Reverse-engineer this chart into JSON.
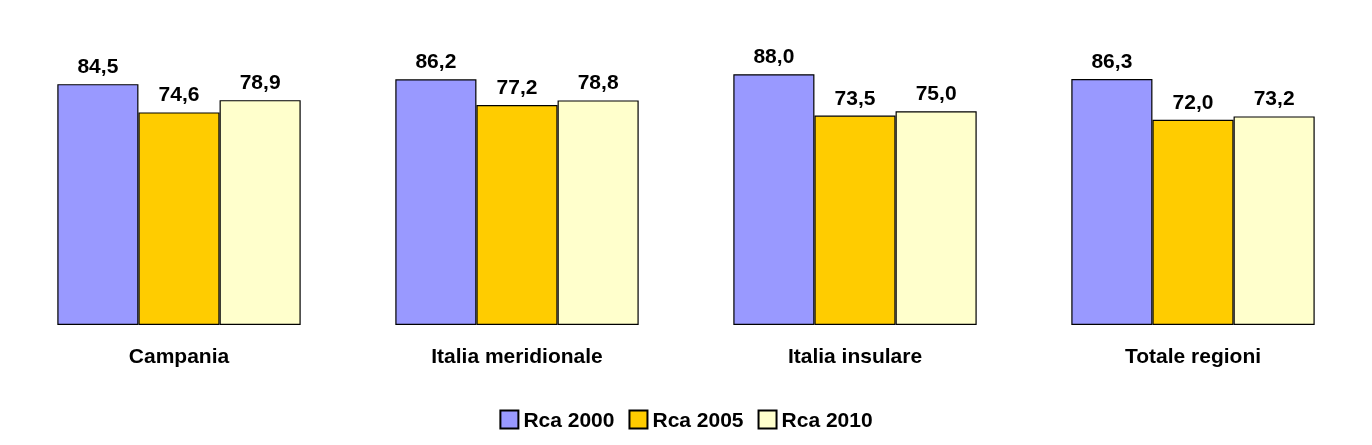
{
  "chart_data": {
    "type": "bar",
    "categories": [
      "Campania",
      "Italia meridionale",
      "Italia insulare",
      "Totale regioni"
    ],
    "series": [
      {
        "name": "Rca 2000",
        "color": "#9999ff",
        "values": [
          84.5,
          86.2,
          88.0,
          86.3
        ],
        "value_labels": [
          "84,5",
          "86,2",
          "88,0",
          "86,3"
        ]
      },
      {
        "name": "Rca 2005",
        "color": "#ffcc00",
        "values": [
          74.6,
          77.2,
          73.5,
          72.0
        ],
        "value_labels": [
          "74,6",
          "77,2",
          "73,5",
          "72,0"
        ]
      },
      {
        "name": "Rca 2010",
        "color": "#ffffcc",
        "values": [
          78.9,
          78.8,
          75.0,
          73.2
        ],
        "value_labels": [
          "78,9",
          "78,8",
          "75,0",
          "73,2"
        ]
      }
    ],
    "legend": "bottom"
  }
}
